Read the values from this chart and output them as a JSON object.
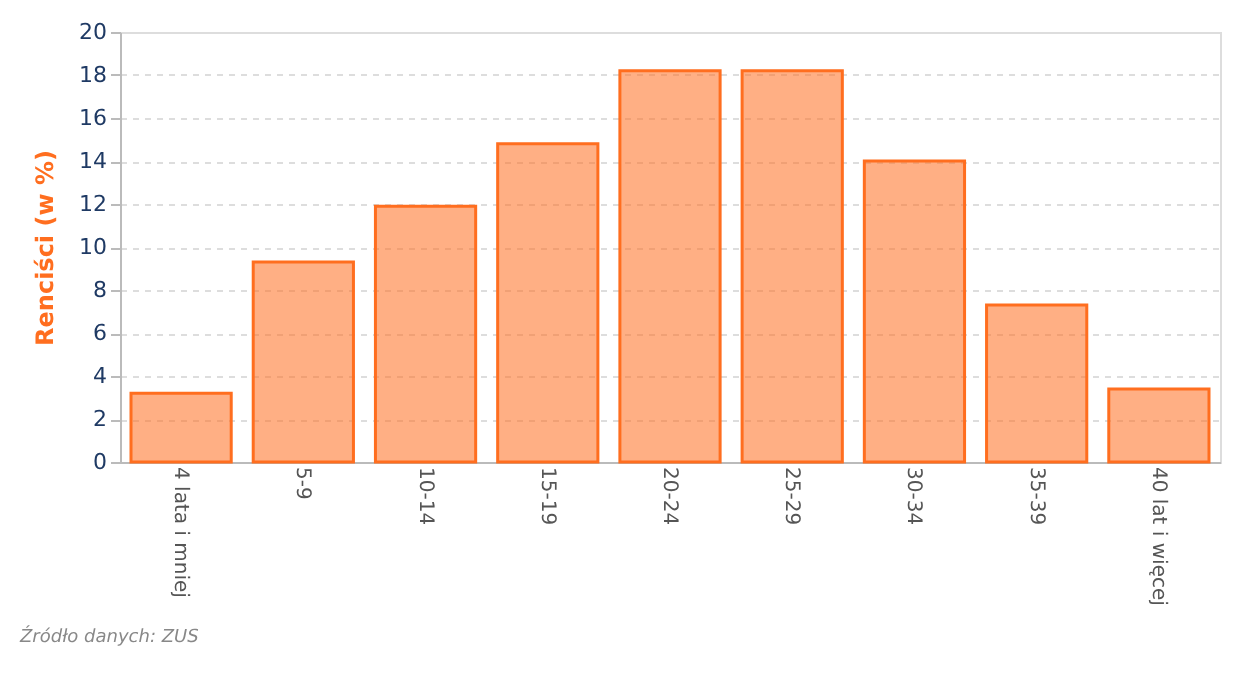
{
  "chart_data": {
    "type": "bar",
    "categories": [
      "4 lata i mniej",
      "5-9",
      "10-14",
      "15-19",
      "20-24",
      "25-29",
      "30-34",
      "35-39",
      "40 lat i więcej"
    ],
    "values": [
      3.2,
      9.3,
      11.9,
      14.8,
      18.2,
      18.2,
      14.0,
      7.3,
      3.4
    ],
    "color": "#ff6e1f",
    "ylabel": "Renciści (w %)",
    "ylim": [
      0,
      20
    ],
    "yticks": [
      0,
      2,
      4,
      6,
      8,
      10,
      12,
      14,
      16,
      18,
      20
    ],
    "grid": "y",
    "annotations": [
      "Źródło danych: ZUS"
    ]
  }
}
